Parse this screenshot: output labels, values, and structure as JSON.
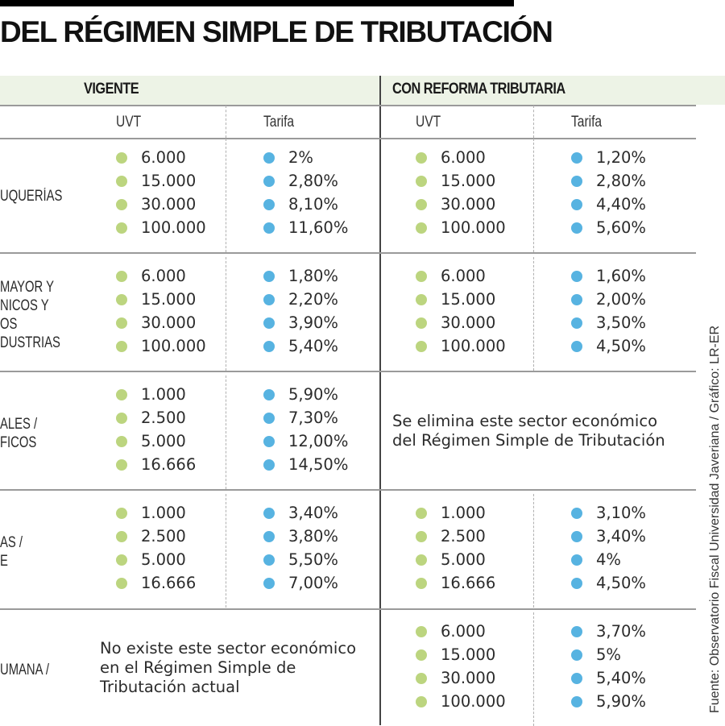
{
  "title": "DEL RÉGIMEN SIMPLE DE TRIBUTACIÓN",
  "headers": {
    "vigente": "VIGENTE",
    "reforma": "CON REFORMA TRIBUTARIA"
  },
  "subheaders": {
    "uvt": "UVT",
    "tarifa": "Tarifa"
  },
  "rows": [
    {
      "label_lines": [
        "UQUERÍAS"
      ],
      "vigente": {
        "uvt": [
          "6.000",
          "15.000",
          "30.000",
          "100.000"
        ],
        "tarifa": [
          "2%",
          "2,80%",
          "8,10%",
          "11,60%"
        ]
      },
      "reforma": {
        "uvt": [
          "6.000",
          "15.000",
          "30.000",
          "100.000"
        ],
        "tarifa": [
          "1,20%",
          "2,80%",
          "4,40%",
          "5,60%"
        ]
      }
    },
    {
      "label_lines": [
        "MAYOR Y",
        "NICOS Y",
        "OS",
        "DUSTRIAS"
      ],
      "vigente": {
        "uvt": [
          "6.000",
          "15.000",
          "30.000",
          "100.000"
        ],
        "tarifa": [
          "1,80%",
          "2,20%",
          "3,90%",
          "5,40%"
        ]
      },
      "reforma": {
        "uvt": [
          "6.000",
          "15.000",
          "30.000",
          "100.000"
        ],
        "tarifa": [
          "1,60%",
          "2,00%",
          "3,50%",
          "4,50%"
        ]
      }
    },
    {
      "label_lines": [
        "ALES /",
        "FICOS"
      ],
      "vigente": {
        "uvt": [
          "1.000",
          "2.500",
          "5.000",
          "16.666"
        ],
        "tarifa": [
          "5,90%",
          "7,30%",
          "12,00%",
          "14,50%"
        ]
      },
      "reforma_note": "Se elimina este sector económico del Régimen Simple de Tributación"
    },
    {
      "label_lines": [
        "AS /",
        "E"
      ],
      "vigente": {
        "uvt": [
          "1.000",
          "2.500",
          "5.000",
          "16.666"
        ],
        "tarifa": [
          "3,40%",
          "3,80%",
          "5,50%",
          "7,00%"
        ]
      },
      "reforma": {
        "uvt": [
          "1.000",
          "2.500",
          "5.000",
          "16.666"
        ],
        "tarifa": [
          "3,10%",
          "3,40%",
          "4%",
          "4,50%"
        ]
      }
    },
    {
      "label_lines": [
        "UMANA /"
      ],
      "vigente_note": "No existe este sector económico en el Régimen Simple de Tributación actual",
      "reforma": {
        "uvt": [
          "6.000",
          "15.000",
          "30.000",
          "100.000"
        ],
        "tarifa": [
          "3,70%",
          "5%",
          "5,40%",
          "5,90%"
        ]
      }
    }
  ],
  "source": "Fuente: Observatorio Fiscal Universidad Javeriana / Gráfico: LR-ER",
  "colors": {
    "uvt_dot": "#bcd57f",
    "tarifa_dot": "#57b3e1",
    "header_band": "#edf3e6"
  }
}
